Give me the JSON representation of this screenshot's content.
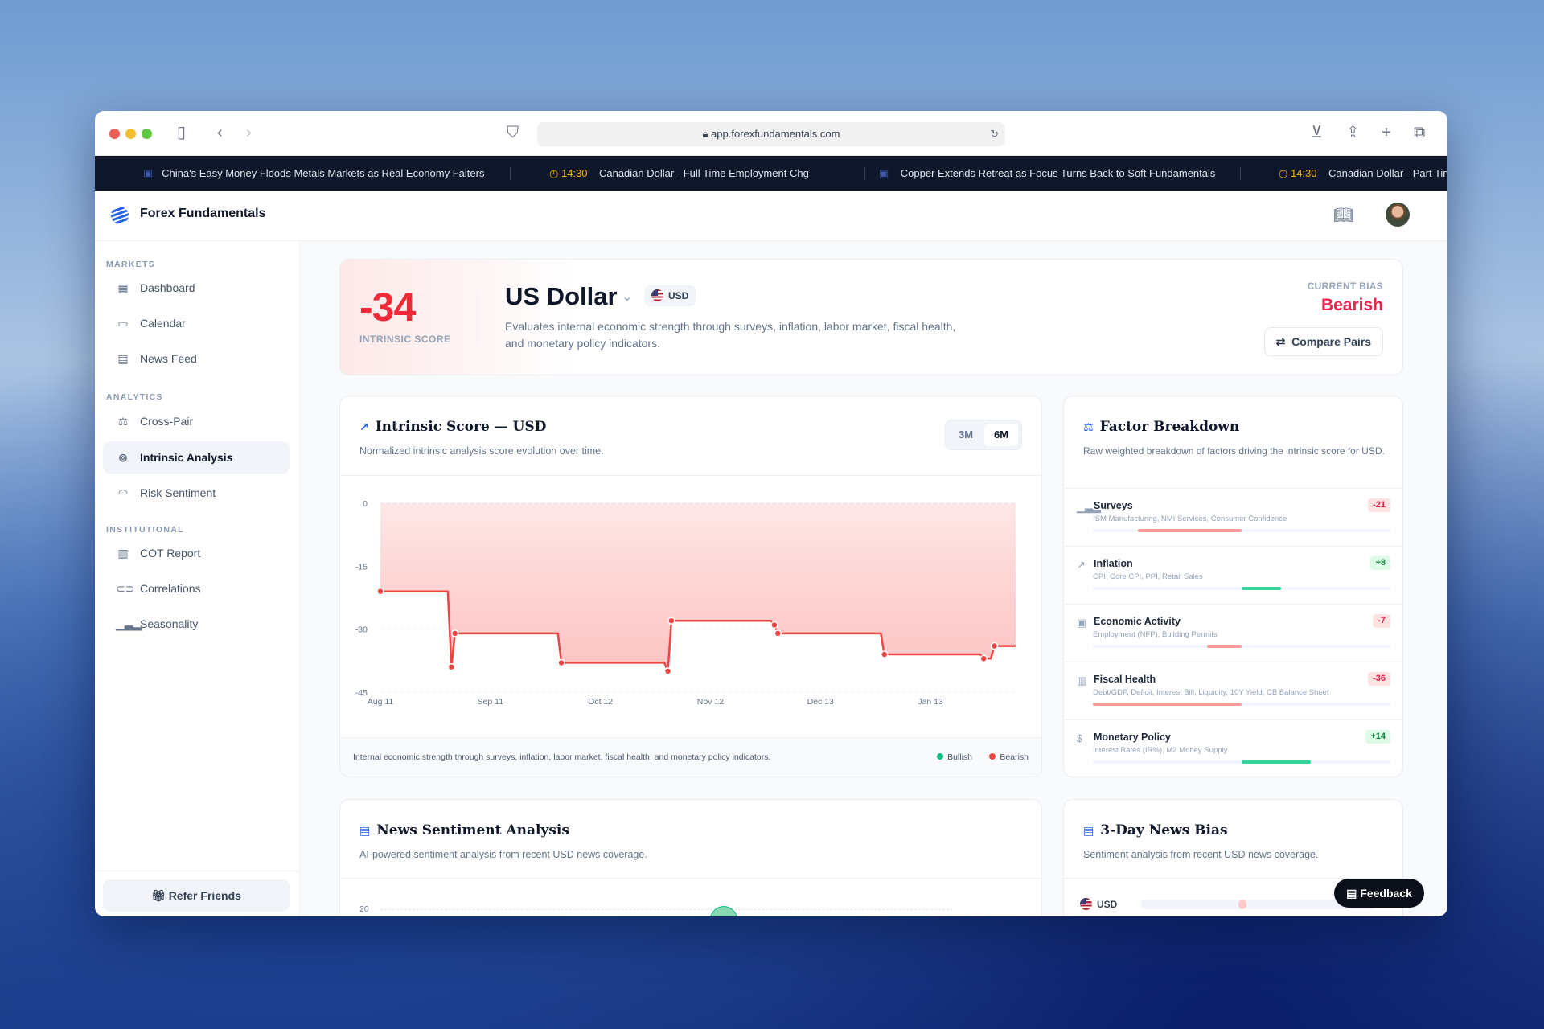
{
  "browser": {
    "url": "app.forexfundamentals.com"
  },
  "ticker": [
    {
      "type": "news",
      "text": "China's Easy Money Floods Metals Markets as Real Economy Falters"
    },
    {
      "type": "event",
      "time": "14:30",
      "text": "Canadian Dollar - Full Time Employment Chg"
    },
    {
      "type": "news",
      "text": "Copper Extends Retreat as Focus Turns Back to Soft Fundamentals"
    },
    {
      "type": "event",
      "time": "14:30",
      "text": "Canadian Dollar - Part Time Employment Chg"
    }
  ],
  "app": {
    "brand": "Forex Fundamentals"
  },
  "sidebar": {
    "sections": [
      {
        "title": "MARKETS",
        "items": [
          {
            "label": "Dashboard",
            "icon": "grid-icon"
          },
          {
            "label": "Calendar",
            "icon": "calendar-icon"
          },
          {
            "label": "News Feed",
            "icon": "newspaper-icon"
          }
        ]
      },
      {
        "title": "ANALYTICS",
        "items": [
          {
            "label": "Cross-Pair",
            "icon": "scale-icon"
          },
          {
            "label": "Intrinsic Analysis",
            "icon": "coins-icon",
            "active": true
          },
          {
            "label": "Risk Sentiment",
            "icon": "gauge-icon"
          }
        ]
      },
      {
        "title": "INSTITUTIONAL",
        "items": [
          {
            "label": "COT Report",
            "icon": "report-icon"
          },
          {
            "label": "Correlations",
            "icon": "link-icon"
          },
          {
            "label": "Seasonality",
            "icon": "bar-chart-icon"
          }
        ]
      }
    ],
    "refer": "Refer Friends"
  },
  "hero": {
    "score": "-34",
    "score_label": "INTRINSIC SCORE",
    "currency_name": "US Dollar",
    "currency_code": "USD",
    "description": "Evaluates internal economic strength through surveys, inflation, labor market, fiscal health, and monetary policy indicators.",
    "bias_label": "CURRENT BIAS",
    "bias": "Bearish",
    "compare": "Compare Pairs"
  },
  "score_chart": {
    "title": "Intrinsic Score — USD",
    "subtitle": "Normalized intrinsic analysis score evolution over time.",
    "ranges": [
      "3M",
      "6M"
    ],
    "selected_range": "6M",
    "footer": "Internal economic strength through surveys, inflation, labor market, fiscal health, and monetary policy indicators.",
    "legend": [
      {
        "label": "Bullish",
        "color": "#10b981"
      },
      {
        "label": "Bearish",
        "color": "#ef4444"
      }
    ]
  },
  "chart_data": {
    "type": "line",
    "ylim": [
      -45,
      0
    ],
    "yticks": [
      "0",
      "-15",
      "-30",
      "-45"
    ],
    "xticks": [
      "Aug 11",
      "Sep 11",
      "Oct 12",
      "Nov 12",
      "Dec 13",
      "Jan 13"
    ],
    "grid": true,
    "line_color": "#ef4444",
    "points": [
      {
        "x": "Aug 11",
        "y": -21,
        "dot": true
      },
      {
        "x": "Aug 30",
        "y": -21
      },
      {
        "x": "Aug 31",
        "y": -39,
        "dot": true
      },
      {
        "x": "Sep 1",
        "y": -31,
        "dot": true
      },
      {
        "x": "Sep 30",
        "y": -31
      },
      {
        "x": "Oct 1",
        "y": -38,
        "dot": true
      },
      {
        "x": "Oct 30",
        "y": -38
      },
      {
        "x": "Oct 31",
        "y": -40,
        "dot": true
      },
      {
        "x": "Nov 1",
        "y": -28,
        "dot": true
      },
      {
        "x": "Nov 29",
        "y": -28
      },
      {
        "x": "Nov 30",
        "y": -29,
        "dot": true
      },
      {
        "x": "Dec 1",
        "y": -31,
        "dot": true
      },
      {
        "x": "Dec 30",
        "y": -31
      },
      {
        "x": "Dec 31",
        "y": -36,
        "dot": true
      },
      {
        "x": "Jan 27",
        "y": -36
      },
      {
        "x": "Jan 28",
        "y": -37,
        "dot": true
      },
      {
        "x": "Jan 30",
        "y": -37
      },
      {
        "x": "Jan 31",
        "y": -34,
        "dot": true
      },
      {
        "x": "Feb 6",
        "y": -34
      }
    ]
  },
  "factors": {
    "title": "Factor Breakdown",
    "subtitle": "Raw weighted breakdown of factors driving the intrinsic score for USD.",
    "scale_max": 30,
    "items": [
      {
        "name": "Surveys",
        "sub": "ISM Manufacturing, NMI Services, Consumer Confidence",
        "value": -21,
        "label": "-21",
        "icon": "bar-chart-icon"
      },
      {
        "name": "Inflation",
        "sub": "CPI, Core CPI, PPI, Retail Sales",
        "value": 8,
        "label": "+8",
        "icon": "trending-up-icon"
      },
      {
        "name": "Economic Activity",
        "sub": "Employment (NFP), Building Permits",
        "value": -7,
        "label": "-7",
        "icon": "briefcase-icon"
      },
      {
        "name": "Fiscal Health",
        "sub": "Debt/GDP, Deficit, Interest Bill, Liquidity, 10Y Yield, CB Balance Sheet",
        "value": -36,
        "label": "-36",
        "icon": "report-icon"
      },
      {
        "name": "Monetary Policy",
        "sub": "Interest Rates (IR%), M2 Money Supply",
        "value": 14,
        "label": "+14",
        "icon": "dollar-icon"
      }
    ]
  },
  "news": {
    "title": "News Sentiment Analysis",
    "subtitle": "AI-powered sentiment analysis from recent USD news coverage.",
    "ytick": "20"
  },
  "bias3": {
    "title": "3-Day News Bias",
    "subtitle": "Sentiment analysis from recent USD news coverage.",
    "currency": "USD"
  },
  "feedback": "Feedback"
}
